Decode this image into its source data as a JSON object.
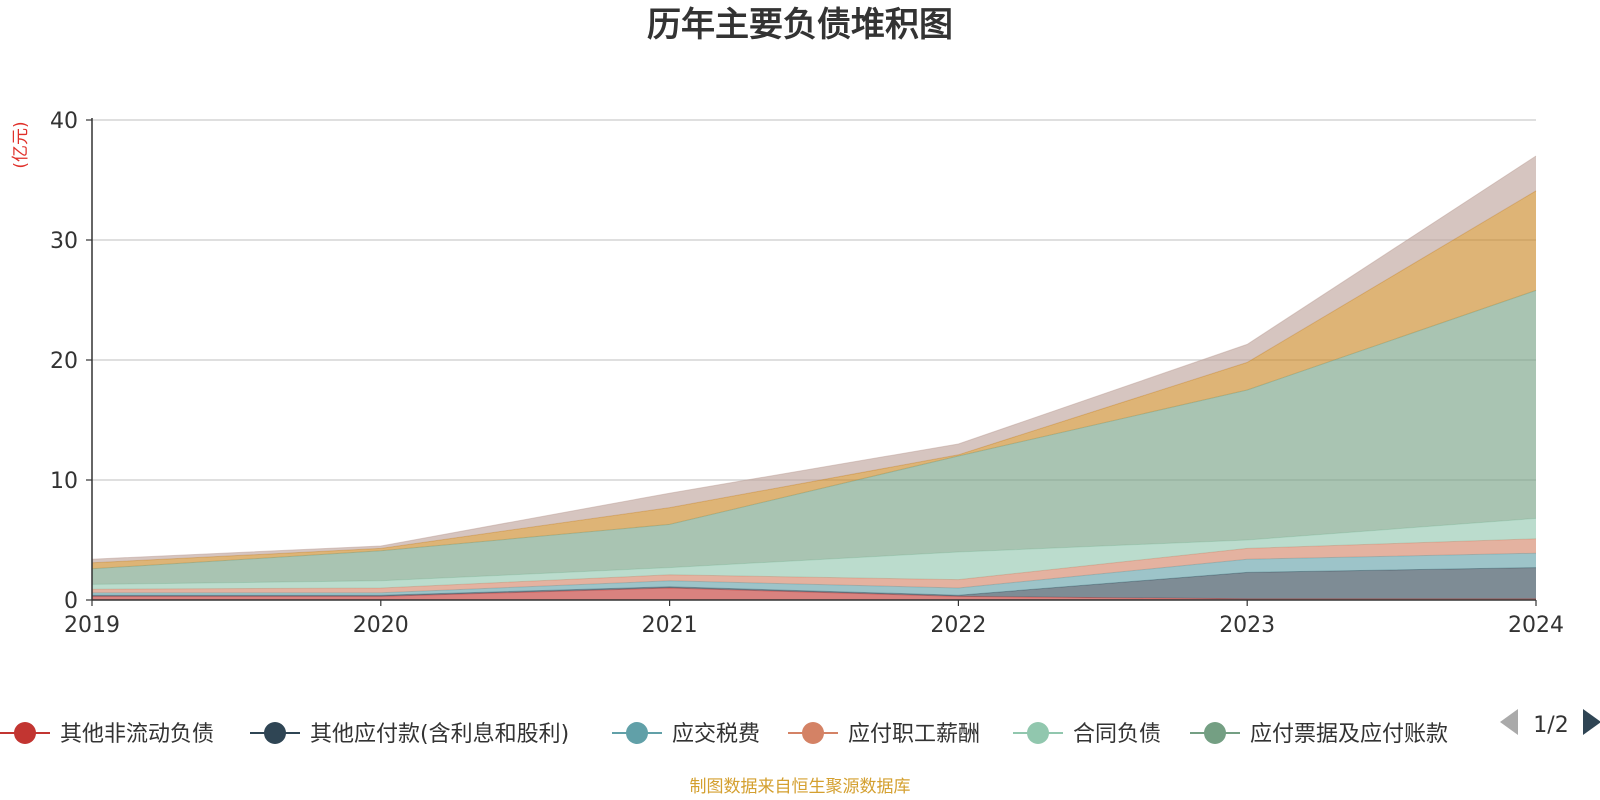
{
  "chart_data": {
    "type": "area",
    "title": "历年主要负债堆积图",
    "ylabel": "(亿元)",
    "xlabel": "",
    "x": [
      "2019",
      "2020",
      "2021",
      "2022",
      "2023",
      "2024"
    ],
    "ylim": [
      0,
      40
    ],
    "yticks": [
      0,
      10,
      20,
      30,
      40
    ],
    "stacked": true,
    "grid": true,
    "legend_position": "bottom",
    "legend_page": "1/2",
    "series": [
      {
        "name": "其他非流动负债",
        "color": "#c23531",
        "values": [
          0.3,
          0.3,
          1.0,
          0.3,
          0.1,
          0.1
        ]
      },
      {
        "name": "其他应付款(含利息和股利)",
        "color": "#2f4554",
        "values": [
          0.1,
          0.1,
          0.1,
          0.1,
          2.2,
          2.6
        ]
      },
      {
        "name": "应交税费",
        "color": "#61a0a8",
        "values": [
          0.2,
          0.2,
          0.5,
          0.6,
          1.1,
          1.2
        ]
      },
      {
        "name": "应付职工薪酬",
        "color": "#d48265",
        "values": [
          0.3,
          0.4,
          0.5,
          0.7,
          0.9,
          1.2
        ]
      },
      {
        "name": "合同负债",
        "color": "#91c7ae",
        "values": [
          0.4,
          0.6,
          0.6,
          2.3,
          0.7,
          1.7
        ]
      },
      {
        "name": "应付票据及应付账款",
        "color": "#749f83",
        "values": [
          1.3,
          2.5,
          3.6,
          8.0,
          12.5,
          19.0
        ]
      },
      {
        "name": "",
        "color": "#ca8622",
        "values": [
          0.5,
          0.2,
          1.4,
          0.1,
          2.3,
          8.3
        ]
      },
      {
        "name": "",
        "color": "#bda29a",
        "values": [
          0.3,
          0.2,
          1.2,
          0.9,
          1.5,
          2.9
        ]
      }
    ]
  },
  "footer": {
    "source": "制图数据来自恒生聚源数据库"
  },
  "icons": {
    "legend_prev": "triangle-left-icon",
    "legend_next": "triangle-right-icon"
  }
}
